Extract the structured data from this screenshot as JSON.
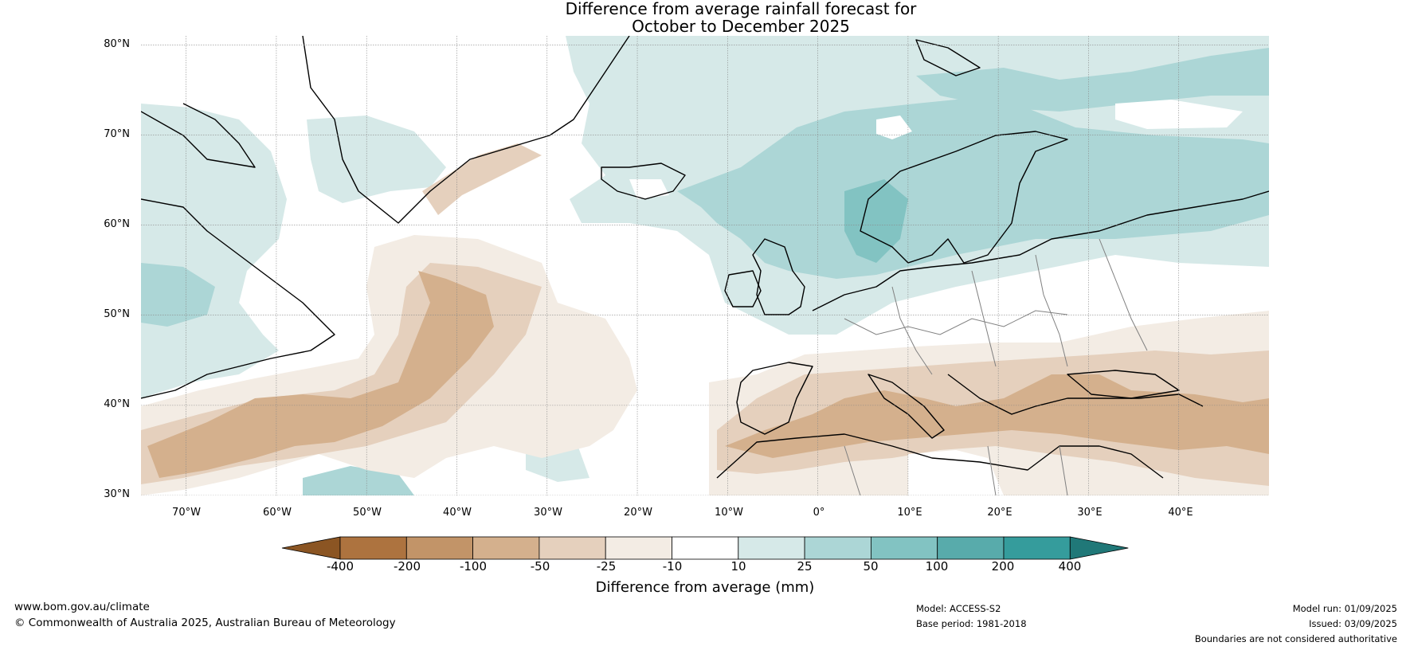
{
  "title": {
    "line1": "Difference from average rainfall forecast for",
    "line2": "October to December 2025"
  },
  "map": {
    "projection": "Plate carrée",
    "extent": {
      "lon_min": -75,
      "lon_max": 50,
      "lat_min": 30,
      "lat_max": 81
    },
    "latitude_labels": [
      "80°N",
      "70°N",
      "60°N",
      "50°N",
      "40°N",
      "30°N"
    ],
    "longitude_labels": [
      "70°W",
      "60°W",
      "50°W",
      "40°W",
      "30°W",
      "20°W",
      "10°W",
      "0°",
      "10°E",
      "20°E",
      "30°E",
      "40°E"
    ],
    "gridlines": true
  },
  "colorbar": {
    "title": "Difference from average (mm)",
    "tick_labels": [
      "-400",
      "-200",
      "-100",
      "-50",
      "-25",
      "-10",
      "10",
      "25",
      "50",
      "100",
      "200",
      "400"
    ],
    "bins": [
      {
        "range": "< -400",
        "color": "#8b5523"
      },
      {
        "range": "-400 to -200",
        "color": "#ad733f"
      },
      {
        "range": "-200 to -100",
        "color": "#c29468"
      },
      {
        "range": "-100 to -50",
        "color": "#d4b08d"
      },
      {
        "range": "-50 to -25",
        "color": "#e5d0bd"
      },
      {
        "range": "-25 to -10",
        "color": "#f3ece4"
      },
      {
        "range": "-10 to 10",
        "color": "#ffffff"
      },
      {
        "range": "10 to 25",
        "color": "#d6e9e8"
      },
      {
        "range": "25 to 50",
        "color": "#acd6d6"
      },
      {
        "range": "50 to 100",
        "color": "#82c3c2"
      },
      {
        "range": "100 to 200",
        "color": "#58abab"
      },
      {
        "range": "200 to 400",
        "color": "#359c9c"
      },
      {
        "range": "> 400",
        "color": "#207878"
      }
    ]
  },
  "footer": {
    "website": "www.bom.gov.au/climate",
    "copyright": "© Commonwealth of Australia 2025, Australian Bureau of Meteorology",
    "model": "Model: ACCESS-S2",
    "base_period": "Base period: 1981-2018",
    "model_run": "Model run: 01/09/2025",
    "issued": "Issued: 03/09/2025",
    "disclaimer": "Boundaries are not considered authoritative"
  }
}
